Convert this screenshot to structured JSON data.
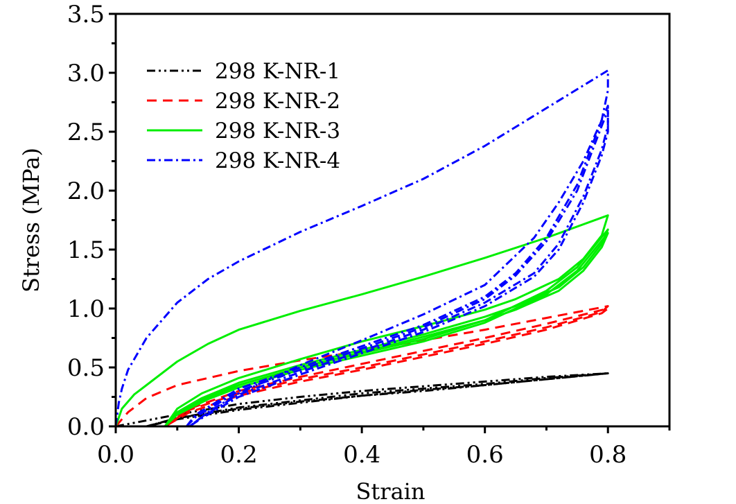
{
  "chart_data": {
    "type": "line",
    "title": "",
    "xlabel": "Strain",
    "ylabel": "Stress (MPa)",
    "xlim": [
      0.0,
      0.9
    ],
    "ylim": [
      0.0,
      3.5
    ],
    "x_ticks": [
      0.0,
      0.2,
      0.4,
      0.6,
      0.8
    ],
    "x_tick_labels": [
      "0.0",
      "0.2",
      "0.4",
      "0.6",
      "0.8"
    ],
    "x_minor_ticks": [
      0.1,
      0.3,
      0.5,
      0.7,
      0.9
    ],
    "y_ticks": [
      0.0,
      0.5,
      1.0,
      1.5,
      2.0,
      2.5,
      3.0,
      3.5
    ],
    "y_tick_labels": [
      "0.0",
      "0.5",
      "1.0",
      "1.5",
      "2.0",
      "2.5",
      "3.0",
      "3.5"
    ],
    "y_minor_ticks": [
      0.25,
      0.75,
      1.25,
      1.75,
      2.25,
      2.75,
      3.25
    ],
    "grid": false,
    "legend_position": "top-left",
    "series": [
      {
        "name": "298 K-NR-1",
        "color": "#000000",
        "style": "dash-dot-dot",
        "loops": [
          [
            [
              0,
              0
            ],
            [
              0.05,
              0.05
            ],
            [
              0.1,
              0.1
            ],
            [
              0.2,
              0.19
            ],
            [
              0.3,
              0.25
            ],
            [
              0.4,
              0.3
            ],
            [
              0.5,
              0.34
            ],
            [
              0.6,
              0.38
            ],
            [
              0.7,
              0.42
            ],
            [
              0.8,
              0.45
            ],
            [
              0.7,
              0.4
            ],
            [
              0.6,
              0.35
            ],
            [
              0.5,
              0.31
            ],
            [
              0.4,
              0.26
            ],
            [
              0.3,
              0.21
            ],
            [
              0.2,
              0.15
            ],
            [
              0.1,
              0.07
            ],
            [
              0.05,
              0
            ]
          ],
          [
            [
              0.05,
              0
            ],
            [
              0.1,
              0.07
            ],
            [
              0.2,
              0.16
            ],
            [
              0.3,
              0.22
            ],
            [
              0.4,
              0.28
            ],
            [
              0.5,
              0.32
            ],
            [
              0.6,
              0.36
            ],
            [
              0.7,
              0.41
            ],
            [
              0.8,
              0.45
            ],
            [
              0.7,
              0.4
            ],
            [
              0.6,
              0.35
            ],
            [
              0.5,
              0.3
            ],
            [
              0.4,
              0.26
            ],
            [
              0.3,
              0.2
            ],
            [
              0.2,
              0.14
            ],
            [
              0.1,
              0.06
            ],
            [
              0.05,
              0
            ]
          ]
        ]
      },
      {
        "name": "298 K-NR-2",
        "color": "#ff0000",
        "style": "dash",
        "loops": [
          [
            [
              0,
              0
            ],
            [
              0.02,
              0.12
            ],
            [
              0.05,
              0.24
            ],
            [
              0.1,
              0.35
            ],
            [
              0.2,
              0.47
            ],
            [
              0.3,
              0.56
            ],
            [
              0.4,
              0.64
            ],
            [
              0.5,
              0.73
            ],
            [
              0.6,
              0.82
            ],
            [
              0.7,
              0.92
            ],
            [
              0.8,
              1.02
            ],
            [
              0.79,
              0.97
            ],
            [
              0.7,
              0.84
            ],
            [
              0.6,
              0.72
            ],
            [
              0.5,
              0.61
            ],
            [
              0.4,
              0.5
            ],
            [
              0.3,
              0.4
            ],
            [
              0.2,
              0.28
            ],
            [
              0.12,
              0.14
            ],
            [
              0.08,
              0
            ]
          ],
          [
            [
              0.08,
              0
            ],
            [
              0.12,
              0.15
            ],
            [
              0.2,
              0.3
            ],
            [
              0.3,
              0.42
            ],
            [
              0.4,
              0.53
            ],
            [
              0.5,
              0.64
            ],
            [
              0.6,
              0.75
            ],
            [
              0.7,
              0.87
            ],
            [
              0.8,
              1.0
            ],
            [
              0.79,
              0.96
            ],
            [
              0.7,
              0.82
            ],
            [
              0.6,
              0.7
            ],
            [
              0.5,
              0.59
            ],
            [
              0.4,
              0.48
            ],
            [
              0.3,
              0.38
            ],
            [
              0.2,
              0.26
            ],
            [
              0.12,
              0.12
            ],
            [
              0.08,
              0
            ]
          ]
        ]
      },
      {
        "name": "298 K-NR-3",
        "color": "#00ee00",
        "style": "solid",
        "loops": [
          [
            [
              0,
              0
            ],
            [
              0.01,
              0.15
            ],
            [
              0.03,
              0.27
            ],
            [
              0.05,
              0.35
            ],
            [
              0.1,
              0.55
            ],
            [
              0.15,
              0.7
            ],
            [
              0.2,
              0.82
            ],
            [
              0.3,
              0.98
            ],
            [
              0.4,
              1.12
            ],
            [
              0.5,
              1.27
            ],
            [
              0.6,
              1.43
            ],
            [
              0.7,
              1.6
            ],
            [
              0.8,
              1.79
            ],
            [
              0.79,
              1.62
            ],
            [
              0.76,
              1.42
            ],
            [
              0.72,
              1.25
            ],
            [
              0.65,
              1.08
            ],
            [
              0.6,
              0.99
            ],
            [
              0.5,
              0.85
            ],
            [
              0.4,
              0.72
            ],
            [
              0.3,
              0.57
            ],
            [
              0.2,
              0.41
            ],
            [
              0.14,
              0.28
            ],
            [
              0.1,
              0.15
            ],
            [
              0.08,
              0
            ]
          ],
          [
            [
              0.08,
              0
            ],
            [
              0.1,
              0.12
            ],
            [
              0.15,
              0.25
            ],
            [
              0.2,
              0.35
            ],
            [
              0.3,
              0.5
            ],
            [
              0.4,
              0.62
            ],
            [
              0.5,
              0.74
            ],
            [
              0.6,
              0.9
            ],
            [
              0.7,
              1.15
            ],
            [
              0.75,
              1.35
            ],
            [
              0.8,
              1.67
            ],
            [
              0.79,
              1.55
            ],
            [
              0.76,
              1.35
            ],
            [
              0.72,
              1.18
            ],
            [
              0.65,
              1.02
            ],
            [
              0.6,
              0.93
            ],
            [
              0.5,
              0.78
            ],
            [
              0.4,
              0.65
            ],
            [
              0.3,
              0.52
            ],
            [
              0.2,
              0.37
            ],
            [
              0.14,
              0.24
            ],
            [
              0.1,
              0.12
            ],
            [
              0.08,
              0
            ]
          ],
          [
            [
              0.08,
              0
            ],
            [
              0.1,
              0.1
            ],
            [
              0.15,
              0.23
            ],
            [
              0.2,
              0.33
            ],
            [
              0.3,
              0.48
            ],
            [
              0.4,
              0.6
            ],
            [
              0.5,
              0.72
            ],
            [
              0.6,
              0.88
            ],
            [
              0.7,
              1.12
            ],
            [
              0.75,
              1.32
            ],
            [
              0.8,
              1.64
            ],
            [
              0.79,
              1.52
            ],
            [
              0.76,
              1.32
            ],
            [
              0.72,
              1.15
            ],
            [
              0.65,
              0.99
            ],
            [
              0.6,
              0.9
            ],
            [
              0.5,
              0.76
            ],
            [
              0.4,
              0.63
            ],
            [
              0.3,
              0.5
            ],
            [
              0.2,
              0.35
            ],
            [
              0.14,
              0.22
            ],
            [
              0.1,
              0.1
            ],
            [
              0.08,
              0
            ]
          ]
        ]
      },
      {
        "name": "298 K-NR-4",
        "color": "#0000ff",
        "style": "dash-dot",
        "loops": [
          [
            [
              0,
              0
            ],
            [
              0.005,
              0.2
            ],
            [
              0.01,
              0.32
            ],
            [
              0.02,
              0.48
            ],
            [
              0.05,
              0.75
            ],
            [
              0.1,
              1.05
            ],
            [
              0.15,
              1.25
            ],
            [
              0.2,
              1.4
            ],
            [
              0.3,
              1.65
            ],
            [
              0.4,
              1.87
            ],
            [
              0.5,
              2.1
            ],
            [
              0.6,
              2.38
            ],
            [
              0.7,
              2.7
            ],
            [
              0.8,
              3.02
            ],
            [
              0.8,
              2.85
            ],
            [
              0.79,
              2.6
            ],
            [
              0.76,
              2.25
            ],
            [
              0.72,
              1.9
            ],
            [
              0.68,
              1.6
            ],
            [
              0.6,
              1.2
            ],
            [
              0.5,
              0.95
            ],
            [
              0.4,
              0.73
            ],
            [
              0.3,
              0.52
            ],
            [
              0.2,
              0.28
            ],
            [
              0.15,
              0.12
            ],
            [
              0.12,
              0
            ]
          ],
          [
            [
              0.115,
              0
            ],
            [
              0.13,
              0.1
            ],
            [
              0.2,
              0.32
            ],
            [
              0.3,
              0.5
            ],
            [
              0.4,
              0.68
            ],
            [
              0.5,
              0.86
            ],
            [
              0.6,
              1.1
            ],
            [
              0.65,
              1.3
            ],
            [
              0.7,
              1.6
            ],
            [
              0.75,
              2.05
            ],
            [
              0.79,
              2.6
            ],
            [
              0.8,
              2.72
            ],
            [
              0.8,
              2.55
            ],
            [
              0.79,
              2.35
            ],
            [
              0.76,
              1.95
            ],
            [
              0.72,
              1.55
            ],
            [
              0.68,
              1.3
            ],
            [
              0.6,
              1.05
            ],
            [
              0.5,
              0.82
            ],
            [
              0.4,
              0.64
            ],
            [
              0.3,
              0.46
            ],
            [
              0.2,
              0.27
            ],
            [
              0.14,
              0.08
            ],
            [
              0.12,
              0
            ]
          ],
          [
            [
              0.115,
              0
            ],
            [
              0.13,
              0.08
            ],
            [
              0.2,
              0.3
            ],
            [
              0.3,
              0.48
            ],
            [
              0.4,
              0.66
            ],
            [
              0.5,
              0.84
            ],
            [
              0.6,
              1.08
            ],
            [
              0.65,
              1.28
            ],
            [
              0.7,
              1.57
            ],
            [
              0.75,
              2.0
            ],
            [
              0.79,
              2.55
            ],
            [
              0.8,
              2.68
            ],
            [
              0.8,
              2.5
            ],
            [
              0.79,
              2.3
            ],
            [
              0.76,
              1.9
            ],
            [
              0.72,
              1.5
            ],
            [
              0.68,
              1.27
            ],
            [
              0.6,
              1.02
            ],
            [
              0.5,
              0.8
            ],
            [
              0.4,
              0.62
            ],
            [
              0.3,
              0.44
            ],
            [
              0.2,
              0.25
            ],
            [
              0.14,
              0.07
            ],
            [
              0.12,
              0
            ]
          ]
        ]
      }
    ]
  }
}
